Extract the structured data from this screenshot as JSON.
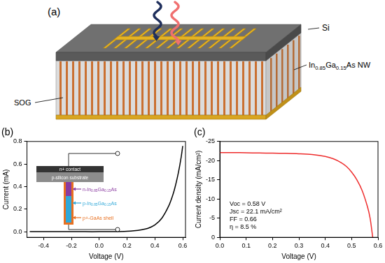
{
  "diagram": {
    "label": "(a)",
    "texts": {
      "top_layer": "Si",
      "nanowires": "In0.85Ga0.15As NW",
      "matrix": "SOG"
    }
  },
  "chart_data": [
    {
      "type": "line",
      "title": "(b)",
      "xlabel": "Voltage (V)",
      "ylabel": "Current (mA)",
      "x": [
        -0.5,
        -0.4,
        -0.3,
        -0.2,
        -0.1,
        0,
        0.1,
        0.2,
        0.25,
        0.3,
        0.35,
        0.4,
        0.45,
        0.5,
        0.53,
        0.55,
        0.57,
        0.59,
        0.6
      ],
      "values": [
        0,
        0,
        0,
        0,
        0,
        0,
        0.001,
        0.004,
        0.008,
        0.016,
        0.03,
        0.06,
        0.12,
        0.23,
        0.33,
        0.42,
        0.53,
        0.67,
        0.76
      ],
      "color": "#000000",
      "xlim": [
        -0.52,
        0.62
      ],
      "xticks": [
        -0.4,
        -0.2,
        {
          "value": 0,
          "label": "0.0"
        },
        0.2,
        0.4,
        0.6
      ],
      "ylim": [
        -0.05,
        0.8
      ],
      "yticks": [
        {
          "value": 0,
          "label": "0.0"
        },
        0.2,
        0.4,
        0.6,
        0.8
      ],
      "grid": false,
      "annotations": [
        "n+ contact",
        "p-silicon substrate",
        "n-In0.85Ga0.15As",
        "p-In0.85Ga0.15As",
        "p+-GaAs shell"
      ]
    },
    {
      "type": "line",
      "title": "(c)",
      "xlabel": "Voltage (V)",
      "ylabel": "Current density (mA/cm²)",
      "x": [
        0,
        0.05,
        0.1,
        0.15,
        0.2,
        0.25,
        0.3,
        0.35,
        0.4,
        0.43,
        0.46,
        0.48,
        0.5,
        0.52,
        0.54,
        0.56,
        0.57,
        0.58
      ],
      "values": [
        -22.1,
        -22.1,
        -22.05,
        -22.0,
        -21.95,
        -21.9,
        -21.8,
        -21.6,
        -21.1,
        -20.5,
        -19.5,
        -18.5,
        -17.0,
        -15.0,
        -12.2,
        -8.0,
        -5.0,
        0
      ],
      "color": "#ee2c2c",
      "xlim": [
        0,
        0.6
      ],
      "xticks": [
        {
          "value": 0,
          "label": "0.0"
        },
        0.1,
        0.2,
        0.3,
        0.4,
        0.5,
        0.6
      ],
      "ylim": [
        0,
        -25
      ],
      "yticks": [
        -25,
        -20,
        -15,
        -10,
        -5,
        0
      ],
      "grid": false,
      "annotations": [
        "Voc = 0.58 V",
        "Jsc = 22.1 mA/cm²",
        "FF = 0.66",
        "η = 8.5 %"
      ]
    }
  ]
}
